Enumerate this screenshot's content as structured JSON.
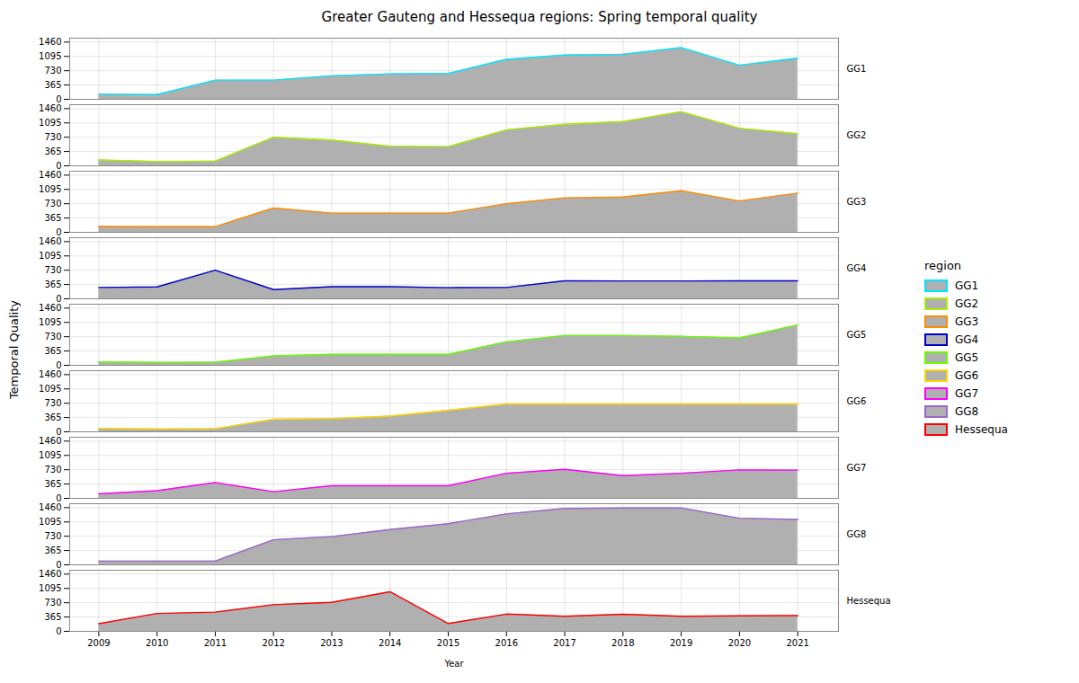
{
  "chart_data": {
    "type": "area",
    "title": "Greater Gauteng and Hessequa regions: Spring temporal quality",
    "xlabel": "Year",
    "ylabel": "Temporal Quality",
    "x": [
      2009,
      2010,
      2011,
      2012,
      2013,
      2014,
      2015,
      2016,
      2017,
      2018,
      2019,
      2020,
      2021
    ],
    "series": [
      {
        "name": "GG1",
        "color": "#00E5FF",
        "values": [
          130,
          120,
          490,
          490,
          600,
          650,
          660,
          1020,
          1130,
          1150,
          1320,
          870,
          1050
        ]
      },
      {
        "name": "GG2",
        "color": "#AAEE00",
        "values": [
          150,
          110,
          120,
          730,
          660,
          500,
          490,
          920,
          1060,
          1130,
          1380,
          960,
          820
        ]
      },
      {
        "name": "GG3",
        "color": "#FF8C00",
        "values": [
          150,
          145,
          145,
          620,
          490,
          490,
          490,
          730,
          880,
          900,
          1060,
          800,
          1000
        ]
      },
      {
        "name": "GG4",
        "color": "#0000CC",
        "values": [
          290,
          305,
          730,
          235,
          310,
          310,
          285,
          290,
          460,
          455,
          455,
          460,
          460
        ]
      },
      {
        "name": "GG5",
        "color": "#66FF00",
        "values": [
          85,
          75,
          80,
          240,
          280,
          280,
          280,
          600,
          760,
          760,
          740,
          700,
          1030
        ]
      },
      {
        "name": "GG6",
        "color": "#FFD700",
        "values": [
          85,
          75,
          80,
          320,
          340,
          400,
          550,
          710,
          710,
          710,
          710,
          710,
          710
        ]
      },
      {
        "name": "GG7",
        "color": "#FF00FF",
        "values": [
          115,
          195,
          400,
          170,
          320,
          320,
          320,
          640,
          740,
          580,
          640,
          725,
          720
        ]
      },
      {
        "name": "GG8",
        "color": "#9966CC",
        "values": [
          95,
          95,
          95,
          640,
          720,
          900,
          1050,
          1300,
          1440,
          1450,
          1450,
          1190,
          1160
        ]
      },
      {
        "name": "Hessequa",
        "color": "#FF0000",
        "values": [
          195,
          455,
          490,
          680,
          740,
          1010,
          200,
          440,
          385,
          435,
          385,
          395,
          400
        ]
      }
    ],
    "color": "#B0B0B0",
    "xlim": [
      2008.5,
      2021.7
    ],
    "xticks": [
      2009,
      2010,
      2011,
      2012,
      2013,
      2014,
      2015,
      2016,
      2017,
      2018,
      2019,
      2020,
      2021
    ],
    "ylim": [
      0,
      1560
    ],
    "yticks": [
      0,
      365,
      730,
      1095,
      1460
    ],
    "grid": true,
    "legend": "right",
    "legend_title": "region"
  }
}
